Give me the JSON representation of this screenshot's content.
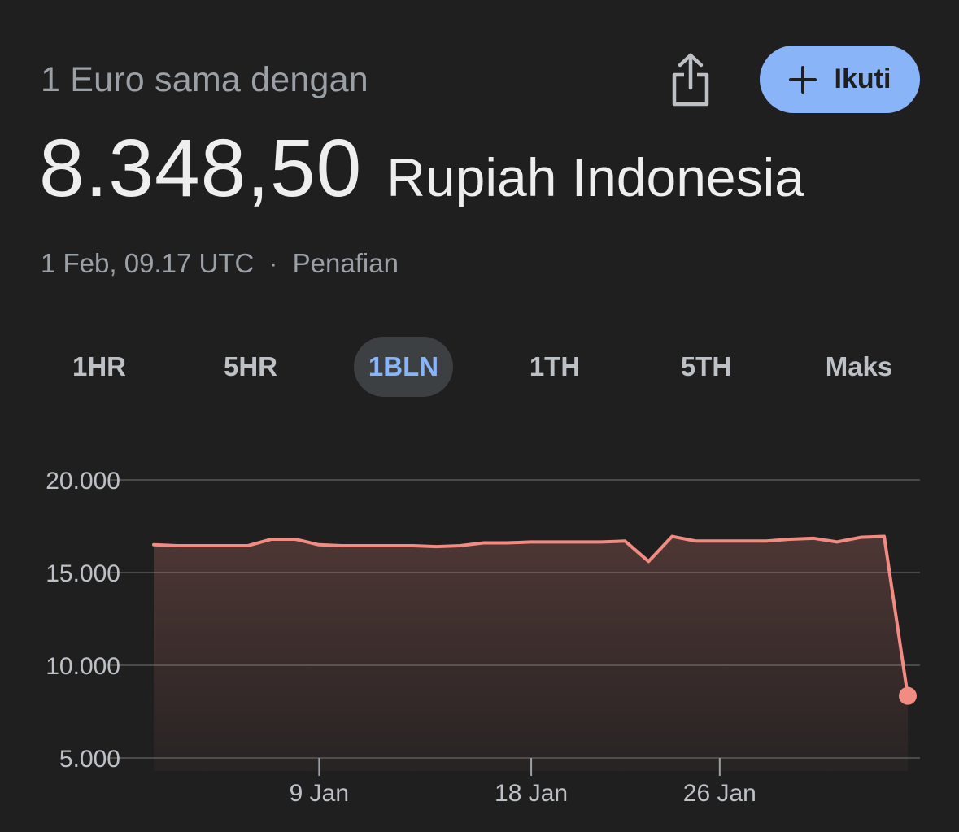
{
  "header": {
    "subtitle": "1 Euro sama dengan",
    "rate_value": "8.348,50",
    "rate_currency": "Rupiah Indonesia",
    "timestamp": "1 Feb, 09.17 UTC",
    "separator": "·",
    "disclaimer_link": "Penafian"
  },
  "actions": {
    "share_icon": "share-icon",
    "follow_label": "Ikuti",
    "follow_icon": "plus-icon"
  },
  "tabs": [
    {
      "label": "1HR",
      "active": false
    },
    {
      "label": "5HR",
      "active": false
    },
    {
      "label": "1BLN",
      "active": true
    },
    {
      "label": "1TH",
      "active": false
    },
    {
      "label": "5TH",
      "active": false
    },
    {
      "label": "Maks",
      "active": false
    }
  ],
  "colors": {
    "background": "#1f1f1f",
    "accent": "#8ab4f8",
    "line": "#f28b82",
    "grid": "#4a4a4a",
    "text_muted": "#9aa0a6"
  },
  "chart_data": {
    "type": "area",
    "y_ticks": [
      {
        "value": 20000,
        "label": "20.000"
      },
      {
        "value": 15000,
        "label": "15.000"
      },
      {
        "value": 10000,
        "label": "10.000"
      },
      {
        "value": 5000,
        "label": "5.000"
      }
    ],
    "x_ticks": [
      {
        "day": 9,
        "label": "9 Jan"
      },
      {
        "day": 18,
        "label": "18 Jan"
      },
      {
        "day": 26,
        "label": "26 Jan"
      }
    ],
    "x_range_days": [
      2,
      32.5
    ],
    "ylim": [
      5000,
      20000
    ],
    "grid": true,
    "series": [
      {
        "values": [
          [
            2,
            16500
          ],
          [
            3,
            16450
          ],
          [
            4,
            16450
          ],
          [
            5,
            16450
          ],
          [
            6,
            16450
          ],
          [
            7,
            16800
          ],
          [
            8,
            16800
          ],
          [
            9,
            16500
          ],
          [
            10,
            16450
          ],
          [
            11,
            16450
          ],
          [
            12,
            16450
          ],
          [
            13,
            16450
          ],
          [
            14,
            16400
          ],
          [
            15,
            16450
          ],
          [
            16,
            16600
          ],
          [
            17,
            16600
          ],
          [
            18,
            16650
          ],
          [
            19,
            16650
          ],
          [
            20,
            16650
          ],
          [
            21,
            16650
          ],
          [
            22,
            16700
          ],
          [
            23,
            15600
          ],
          [
            24,
            16950
          ],
          [
            25,
            16700
          ],
          [
            26,
            16700
          ],
          [
            27,
            16700
          ],
          [
            28,
            16700
          ],
          [
            29,
            16800
          ],
          [
            30,
            16850
          ],
          [
            31,
            16650
          ],
          [
            32,
            16900
          ],
          [
            33,
            16950
          ],
          [
            34,
            8348.5
          ]
        ]
      }
    ]
  }
}
